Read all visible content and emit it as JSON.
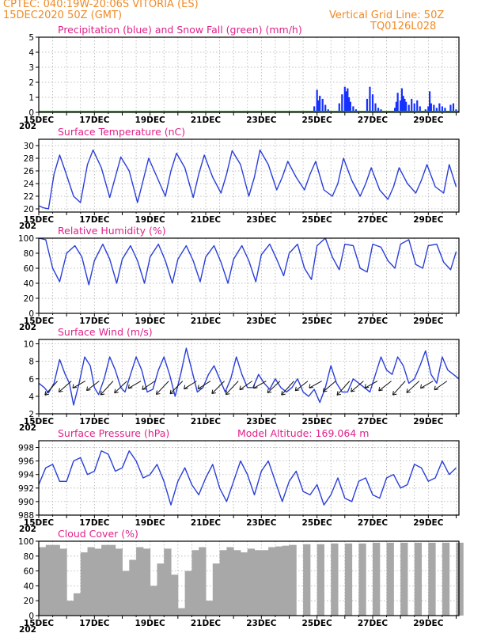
{
  "header": {
    "line1_left": "CPTEC:   040:19W-20:06S   VITORIA (ES)",
    "line2_left": "15DEC2020 50Z (GMT)",
    "line2_right": "Vertical Grid Line: 50Z",
    "line3_right": "TQ0126L028"
  },
  "colors": {
    "header": "#f08a24",
    "title": "#e0208a",
    "line": "#2a3fd8",
    "precip": "#1530ff",
    "snow": "#1aa01a",
    "cloud": "#a8a8a8"
  },
  "x_axis": {
    "labels": [
      "15DEC",
      "17DEC",
      "19DEC",
      "21DEC",
      "23DEC",
      "25DEC",
      "27DEC",
      "29DEC"
    ],
    "label_days": [
      0,
      2,
      4,
      6,
      8,
      10,
      12,
      14
    ],
    "year_stub": "202",
    "range_days": [
      0,
      15.1
    ]
  },
  "chart_data": [
    {
      "id": "precip",
      "type": "bar",
      "title": "Precipitation (blue) and Snow Fall (green) (mm/h)",
      "ylim": [
        0,
        5
      ],
      "yticks": [
        0,
        1,
        2,
        3,
        4,
        5
      ],
      "series": [
        {
          "name": "Precipitation",
          "color": "#1530ff",
          "x": [
            9.9,
            10.0,
            10.05,
            10.1,
            10.2,
            10.3,
            10.4,
            10.8,
            10.9,
            11.0,
            11.05,
            11.1,
            11.15,
            11.2,
            11.3,
            11.4,
            11.8,
            11.9,
            12.0,
            12.1,
            12.2,
            12.3,
            12.8,
            12.85,
            12.9,
            13.0,
            13.05,
            13.1,
            13.15,
            13.2,
            13.3,
            13.4,
            13.5,
            13.6,
            13.7,
            13.9,
            14.0,
            14.05,
            14.1,
            14.2,
            14.3,
            14.4,
            14.5,
            14.6,
            14.8,
            14.9,
            15.0
          ],
          "values": [
            0.4,
            1.5,
            0.8,
            1.1,
            0.9,
            0.5,
            0.2,
            0.6,
            1.2,
            1.7,
            1.4,
            1.6,
            1.0,
            0.7,
            0.4,
            0.2,
            0.9,
            1.7,
            1.2,
            0.6,
            0.3,
            0.2,
            0.3,
            0.7,
            1.3,
            0.8,
            1.6,
            1.1,
            0.9,
            0.7,
            0.5,
            0.9,
            0.6,
            0.8,
            0.4,
            0.2,
            0.4,
            1.4,
            0.6,
            0.5,
            0.3,
            0.6,
            0.4,
            0.3,
            0.5,
            0.6,
            0.2
          ]
        },
        {
          "name": "Snow Fall",
          "color": "#1aa01a",
          "x": [
            0,
            15.1
          ],
          "values": [
            0,
            0
          ]
        }
      ]
    },
    {
      "id": "temperature",
      "type": "line",
      "title": "Surface Temperature (nC)",
      "ylim": [
        19.5,
        31
      ],
      "yticks": [
        20,
        22,
        24,
        26,
        28,
        30
      ],
      "series": [
        {
          "name": "",
          "color": "#2a3fd8",
          "x": [
            0,
            0.15,
            0.35,
            0.55,
            0.75,
            0.95,
            1.25,
            1.5,
            1.75,
            1.95,
            2.25,
            2.55,
            2.75,
            2.95,
            3.25,
            3.55,
            3.75,
            3.95,
            4.25,
            4.55,
            4.75,
            4.95,
            5.25,
            5.55,
            5.75,
            5.95,
            6.25,
            6.55,
            6.75,
            6.95,
            7.25,
            7.55,
            7.75,
            7.95,
            8.25,
            8.55,
            8.75,
            8.95,
            9.25,
            9.55,
            9.75,
            9.95,
            10.25,
            10.55,
            10.75,
            10.95,
            11.25,
            11.55,
            11.75,
            11.95,
            12.25,
            12.55,
            12.75,
            12.95,
            13.25,
            13.55,
            13.75,
            13.95,
            14.25,
            14.55,
            14.75,
            15.0
          ],
          "values": [
            20.5,
            20.2,
            20.0,
            25.5,
            28.5,
            26.0,
            22.0,
            21.0,
            27.0,
            29.3,
            26.5,
            21.8,
            25.0,
            28.2,
            26.0,
            21.0,
            24.5,
            28.0,
            25.0,
            22.0,
            26.0,
            28.8,
            26.5,
            21.8,
            25.5,
            28.5,
            25.0,
            22.5,
            25.5,
            29.2,
            27.0,
            22.0,
            25.0,
            29.3,
            27.0,
            23.0,
            25.0,
            27.5,
            25.0,
            23.0,
            25.5,
            27.5,
            23.0,
            22.0,
            24.0,
            28.0,
            24.5,
            22.0,
            24.0,
            26.5,
            23.0,
            21.5,
            23.5,
            26.5,
            24.0,
            22.5,
            24.5,
            27.0,
            23.5,
            22.5,
            27.0,
            23.5
          ]
        }
      ]
    },
    {
      "id": "humidity",
      "type": "line",
      "title": "Relative Humidity (%)",
      "ylim": [
        0,
        100
      ],
      "yticks": [
        0,
        20,
        40,
        60,
        80,
        100
      ],
      "series": [
        {
          "name": "",
          "color": "#2a3fd8",
          "x": [
            0,
            0.25,
            0.5,
            0.75,
            1.0,
            1.3,
            1.55,
            1.8,
            2.0,
            2.3,
            2.55,
            2.8,
            3.0,
            3.3,
            3.55,
            3.8,
            4.0,
            4.3,
            4.55,
            4.8,
            5.0,
            5.3,
            5.55,
            5.8,
            6.0,
            6.3,
            6.55,
            6.8,
            7.0,
            7.3,
            7.55,
            7.8,
            8.0,
            8.3,
            8.55,
            8.8,
            9.0,
            9.3,
            9.55,
            9.8,
            10.0,
            10.3,
            10.55,
            10.8,
            11.0,
            11.3,
            11.55,
            11.8,
            12.0,
            12.3,
            12.55,
            12.8,
            13.0,
            13.3,
            13.55,
            13.8,
            14.0,
            14.3,
            14.55,
            14.8,
            15.0
          ],
          "values": [
            100,
            98,
            60,
            42,
            80,
            90,
            75,
            38,
            70,
            92,
            72,
            40,
            72,
            90,
            70,
            40,
            75,
            92,
            70,
            40,
            72,
            90,
            70,
            42,
            75,
            90,
            68,
            40,
            72,
            90,
            70,
            42,
            78,
            92,
            72,
            50,
            80,
            92,
            60,
            45,
            90,
            100,
            75,
            58,
            92,
            90,
            60,
            55,
            92,
            88,
            70,
            60,
            92,
            98,
            65,
            60,
            90,
            92,
            68,
            58,
            82
          ]
        }
      ]
    },
    {
      "id": "wind",
      "type": "line",
      "title": "Surface Wind (m/s)",
      "ylim": [
        2,
        10.5
      ],
      "yticks": [
        2,
        4,
        6,
        8,
        10
      ],
      "series": [
        {
          "name": "",
          "color": "#2a3fd8",
          "x": [
            0,
            0.2,
            0.35,
            0.55,
            0.75,
            0.95,
            1.1,
            1.25,
            1.45,
            1.65,
            1.85,
            2.0,
            2.15,
            2.35,
            2.55,
            2.75,
            2.95,
            3.1,
            3.3,
            3.5,
            3.7,
            3.9,
            4.1,
            4.3,
            4.5,
            4.7,
            4.9,
            5.1,
            5.3,
            5.5,
            5.7,
            5.9,
            6.1,
            6.3,
            6.5,
            6.7,
            6.9,
            7.1,
            7.3,
            7.5,
            7.7,
            7.9,
            8.1,
            8.3,
            8.5,
            8.7,
            8.9,
            9.1,
            9.3,
            9.5,
            9.7,
            9.9,
            10.1,
            10.3,
            10.5,
            10.7,
            10.9,
            11.1,
            11.3,
            11.5,
            11.7,
            11.9,
            12.1,
            12.3,
            12.5,
            12.7,
            12.9,
            13.1,
            13.3,
            13.5,
            13.7,
            13.9,
            14.1,
            14.3,
            14.5,
            14.7,
            14.9,
            15.1
          ],
          "values": [
            5.5,
            5.0,
            4.4,
            5.5,
            8.2,
            6.5,
            5.5,
            3.0,
            5.5,
            8.5,
            7.5,
            5.0,
            4.2,
            6.0,
            8.5,
            7.0,
            5.0,
            4.5,
            6.5,
            8.5,
            7.0,
            4.5,
            4.8,
            7.0,
            8.5,
            6.5,
            4.0,
            6.5,
            9.5,
            7.0,
            4.5,
            5.0,
            6.5,
            7.5,
            6.0,
            4.5,
            6.0,
            8.5,
            6.5,
            5.0,
            5.0,
            6.5,
            5.5,
            4.8,
            6.0,
            5.0,
            4.5,
            5.0,
            6.0,
            4.5,
            4.0,
            4.8,
            3.3,
            5.0,
            7.5,
            5.5,
            4.5,
            4.5,
            6.0,
            5.5,
            5.0,
            4.5,
            6.5,
            8.5,
            7.0,
            6.5,
            8.5,
            7.5,
            5.5,
            6.0,
            7.5,
            9.2,
            6.5,
            5.5,
            8.5,
            7.0,
            6.5,
            6.0
          ]
        }
      ]
    },
    {
      "id": "pressure",
      "type": "line",
      "title": "Surface Pressure (hPa)",
      "subtitle": "Model Altitude: 169.064 m",
      "ylim": [
        988,
        999
      ],
      "yticks": [
        988,
        990,
        992,
        994,
        996,
        998
      ],
      "series": [
        {
          "name": "",
          "color": "#2a3fd8",
          "x": [
            0,
            0.25,
            0.5,
            0.75,
            1.0,
            1.25,
            1.5,
            1.75,
            2.0,
            2.25,
            2.5,
            2.75,
            3.0,
            3.25,
            3.5,
            3.75,
            4.0,
            4.25,
            4.5,
            4.75,
            5.0,
            5.25,
            5.5,
            5.75,
            6.0,
            6.25,
            6.5,
            6.75,
            7.0,
            7.25,
            7.5,
            7.75,
            8.0,
            8.25,
            8.5,
            8.75,
            9.0,
            9.25,
            9.5,
            9.75,
            10.0,
            10.25,
            10.5,
            10.75,
            11.0,
            11.25,
            11.5,
            11.75,
            12.0,
            12.25,
            12.5,
            12.75,
            13.0,
            13.25,
            13.5,
            13.75,
            14.0,
            14.25,
            14.5,
            14.75,
            15.0
          ],
          "values": [
            992.5,
            995.0,
            995.5,
            993.0,
            993.0,
            996.0,
            996.5,
            994.0,
            994.5,
            997.5,
            997.0,
            994.5,
            995.0,
            997.5,
            996.0,
            993.5,
            994.0,
            995.5,
            993.0,
            989.5,
            993.0,
            995.0,
            992.5,
            991.0,
            993.5,
            995.5,
            992.0,
            990.0,
            993.0,
            996.0,
            994.0,
            991.0,
            994.5,
            996.0,
            993.0,
            990.0,
            993.0,
            994.5,
            991.5,
            991.0,
            992.5,
            989.5,
            991.0,
            993.5,
            990.5,
            990.0,
            993.0,
            993.5,
            991.0,
            990.5,
            993.5,
            994.0,
            992.0,
            992.5,
            995.5,
            995.0,
            993.0,
            993.5,
            996.0,
            994.0,
            995.0
          ]
        }
      ]
    },
    {
      "id": "cloud",
      "type": "bar",
      "title": "Cloud Cover (%)",
      "ylim": [
        0,
        100
      ],
      "yticks": [
        0,
        20,
        40,
        60,
        80,
        100
      ],
      "series": [
        {
          "name": "",
          "color": "#a8a8a8",
          "x": [
            0,
            0.25,
            0.5,
            0.75,
            1.0,
            1.25,
            1.5,
            1.75,
            2.0,
            2.25,
            2.5,
            2.75,
            3.0,
            3.25,
            3.5,
            3.75,
            4.0,
            4.25,
            4.5,
            4.75,
            5.0,
            5.25,
            5.5,
            5.75,
            6.0,
            6.25,
            6.5,
            6.75,
            7.0,
            7.25,
            7.5,
            7.75,
            8.0,
            8.25,
            8.5,
            8.75,
            9.0,
            9.5,
            10.0,
            10.5,
            11.0,
            11.5,
            12.0,
            12.5,
            13.0,
            13.5,
            14.0,
            14.5,
            15.0
          ],
          "values": [
            92,
            95,
            95,
            90,
            20,
            30,
            85,
            92,
            90,
            95,
            95,
            90,
            60,
            75,
            92,
            90,
            40,
            70,
            90,
            55,
            10,
            60,
            88,
            92,
            20,
            70,
            88,
            92,
            88,
            85,
            90,
            88,
            88,
            92,
            93,
            94,
            95,
            96,
            96,
            97,
            97,
            97,
            98,
            98,
            98,
            98,
            98,
            98,
            98
          ]
        }
      ]
    }
  ]
}
